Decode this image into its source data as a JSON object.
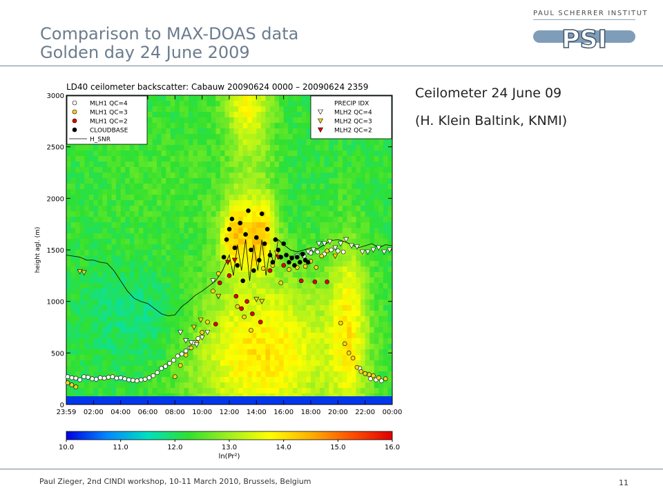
{
  "slide": {
    "title_line1": "Comparison to MAX-DOAS data",
    "title_line2": "Golden day 24 June 2009",
    "logo_text": "PAUL SCHERRER INSTITUT",
    "logo_mark": "PSI",
    "side_line1": "Ceilometer 24 June 09",
    "side_line2": "(H. Klein Baltink, KNMI)",
    "footer": "Paul Zieger, 2nd CINDI workshop, 10-11 March 2010, Brussels, Belgium",
    "page_number": "11"
  },
  "chart_data": {
    "type": "heatmap",
    "title": "LD40 ceilometer backscatter: Cabauw 20090624 0000 – 20090624 2359",
    "ylabel": "height agl. (m)",
    "xlabel": "",
    "xlim": [
      0,
      24
    ],
    "ylim": [
      0,
      3000
    ],
    "x_ticks": [
      "23:59",
      "02:00",
      "04:00",
      "06:00",
      "08:00",
      "10:00",
      "12:00",
      "14:00",
      "16:00",
      "18:00",
      "20:00",
      "22:00",
      "00:00"
    ],
    "y_ticks": [
      "0",
      "500",
      "1000",
      "1500",
      "2000",
      "2500",
      "3000"
    ],
    "colorbar": {
      "label": "ln(Pr²)",
      "min": 10.0,
      "max": 16.0,
      "ticks": [
        "10.0",
        "11.0",
        "12.0",
        "13.0",
        "14.0",
        "15.0",
        "16.0"
      ],
      "colors": [
        "#0000e0",
        "#0088ff",
        "#00e0c0",
        "#30e030",
        "#a0f020",
        "#ffff00",
        "#ffb000",
        "#ff5000",
        "#e00000"
      ]
    },
    "legend_left": {
      "entries": [
        {
          "label": "MLH1  QC=4",
          "marker": "circle",
          "color": "#ffffff"
        },
        {
          "label": "MLH1  QC=3",
          "marker": "circle",
          "color": "#ffd21f"
        },
        {
          "label": "MLH1  QC=2",
          "marker": "circle",
          "color": "#e00000"
        },
        {
          "label": "CLOUDBASE",
          "marker": "circle",
          "color": "#000000"
        },
        {
          "label": "H_SNR",
          "marker": "line",
          "color": "#000000"
        }
      ]
    },
    "legend_right": {
      "entries": [
        {
          "label": "PRECIP IDX",
          "marker": "none",
          "color": "#000000"
        },
        {
          "label": "MLH2  QC=4",
          "marker": "triangle",
          "color": "#ffffff"
        },
        {
          "label": "MLH2  QC=3",
          "marker": "triangle",
          "color": "#ffd21f"
        },
        {
          "label": "MLH2  QC=2",
          "marker": "triangle",
          "color": "#e00000"
        }
      ]
    },
    "surface_band": {
      "y_range": [
        0,
        80
      ],
      "value": 10.3
    },
    "field_blobs": [
      {
        "x": 12.5,
        "y": 1750,
        "sx": 0.9,
        "sy": 300,
        "value": 16.0
      },
      {
        "x": 14.2,
        "y": 1700,
        "sx": 0.8,
        "sy": 280,
        "value": 15.3
      },
      {
        "x": 13.3,
        "y": 2800,
        "sx": 1.2,
        "sy": 450,
        "value": 14.2
      },
      {
        "x": 14.5,
        "y": 500,
        "sx": 4.0,
        "sy": 550,
        "value": 14.0
      },
      {
        "x": 20.7,
        "y": 700,
        "sx": 1.0,
        "sy": 600,
        "value": 14.0
      },
      {
        "x": 5.0,
        "y": 900,
        "sx": 2.5,
        "sy": 350,
        "value": 11.8
      },
      {
        "x": 8.0,
        "y": 2200,
        "sx": 5.0,
        "sy": 500,
        "value": 12.4
      }
    ],
    "h_snr": {
      "x": [
        0,
        0.5,
        1,
        1.5,
        2,
        2.5,
        3,
        3.5,
        4,
        4.5,
        5,
        5.5,
        6,
        6.5,
        7,
        7.5,
        8,
        8.5,
        9,
        9.5,
        10,
        10.5,
        11,
        11.5,
        12,
        12.3,
        12.6,
        12.9,
        13.2,
        13.5,
        13.8,
        14.1,
        14.4,
        14.7,
        15,
        15.3,
        15.6,
        16,
        16.5,
        17,
        17.5,
        18,
        18.5,
        19,
        19.5,
        20,
        20.5,
        21,
        21.5,
        22,
        22.5,
        23,
        23.5,
        24
      ],
      "y": [
        1450,
        1440,
        1430,
        1400,
        1400,
        1380,
        1370,
        1300,
        1200,
        1100,
        1030,
        1000,
        980,
        930,
        880,
        860,
        870,
        950,
        1000,
        1060,
        1100,
        1150,
        1200,
        1300,
        1450,
        1250,
        1550,
        1300,
        1600,
        1200,
        1550,
        1300,
        1600,
        1250,
        1500,
        1350,
        1600,
        1550,
        1500,
        1480,
        1500,
        1520,
        1510,
        1550,
        1590,
        1600,
        1580,
        1550,
        1520,
        1540,
        1560,
        1520,
        1550,
        1540
      ]
    },
    "mlh1_qc4": {
      "x": [
        0.1,
        0.4,
        0.7,
        1.0,
        1.3,
        1.6,
        1.9,
        2.2,
        2.5,
        2.8,
        3.1,
        3.4,
        3.7,
        4.0,
        4.3,
        4.6,
        4.9,
        5.2,
        5.5,
        5.8,
        6.1,
        6.4,
        6.7,
        7.0,
        7.3,
        7.6,
        7.9,
        8.2,
        8.5,
        8.8,
        9.1,
        9.4,
        9.7,
        10.0,
        17.5,
        18.0,
        18.5,
        19.0,
        19.5,
        20.0,
        20.4,
        21.6,
        22.0,
        22.4,
        22.8,
        23.2
      ],
      "y": [
        270,
        260,
        255,
        240,
        270,
        265,
        250,
        245,
        260,
        255,
        265,
        270,
        255,
        260,
        250,
        240,
        235,
        230,
        240,
        245,
        260,
        280,
        310,
        350,
        370,
        400,
        430,
        470,
        490,
        520,
        550,
        600,
        640,
        700,
        1440,
        1470,
        1480,
        1460,
        1500,
        1490,
        1480,
        350,
        300,
        250,
        240,
        230
      ]
    },
    "mlh1_qc3": {
      "x": [
        0.1,
        0.4,
        0.7,
        8.0,
        8.4,
        8.8,
        9.2,
        9.6,
        10.0,
        10.4,
        10.8,
        11.2,
        12.6,
        13.1,
        13.6,
        14.5,
        15.2,
        15.8,
        16.4,
        17.0,
        17.6,
        18.0,
        18.4,
        18.8,
        19.2,
        20.2,
        20.5,
        20.8,
        21.1,
        21.4,
        21.7,
        22.0,
        22.3,
        22.6,
        23.0,
        23.5
      ],
      "y": [
        210,
        190,
        170,
        270,
        380,
        480,
        550,
        600,
        700,
        800,
        1100,
        1270,
        950,
        850,
        720,
        1320,
        1350,
        1180,
        1310,
        1330,
        1340,
        1390,
        1330,
        1440,
        1490,
        790,
        590,
        500,
        450,
        360,
        320,
        300,
        290,
        280,
        260,
        250
      ]
    },
    "mlh1_qc2": {
      "x": [
        11.0,
        11.3,
        12.0,
        12.5,
        12.9,
        13.3,
        13.7,
        14.3,
        15.0,
        16.0,
        17.3,
        18.3,
        19.2
      ],
      "y": [
        780,
        1180,
        1250,
        1050,
        930,
        1000,
        880,
        800,
        1300,
        1350,
        1200,
        1190,
        1190
      ]
    },
    "cloudbase": {
      "x": [
        11.6,
        11.8,
        12.0,
        12.2,
        12.4,
        12.6,
        12.8,
        13.0,
        13.2,
        13.4,
        13.6,
        13.8,
        14.0,
        14.2,
        14.4,
        14.6,
        14.8,
        15.0,
        15.2,
        15.4,
        15.6,
        15.8,
        16.0,
        16.2,
        16.4,
        16.6,
        16.8,
        17.0,
        17.2,
        17.4,
        17.6,
        17.8
      ],
      "y": [
        1430,
        1600,
        1700,
        1800,
        1520,
        1350,
        1760,
        1200,
        1650,
        1880,
        1500,
        1300,
        1620,
        1400,
        1850,
        1560,
        1700,
        1450,
        1380,
        1600,
        1500,
        1430,
        1560,
        1450,
        1380,
        1420,
        1350,
        1430,
        1380,
        1460,
        1400,
        1380
      ]
    },
    "mlh2_qc4": {
      "x": [
        8.4,
        8.8,
        9.2,
        9.6,
        10.0,
        10.4,
        10.8,
        16.6,
        17.0,
        17.4,
        17.8,
        18.2,
        18.6,
        19.0,
        19.4,
        19.8,
        20.2,
        20.6,
        21.0,
        21.4,
        21.8,
        22.2,
        22.6,
        23.0,
        23.4,
        23.8
      ],
      "y": [
        700,
        620,
        600,
        580,
        650,
        700,
        1200,
        1420,
        1440,
        1450,
        1480,
        1500,
        1560,
        1560,
        1580,
        1520,
        1560,
        1600,
        1540,
        1530,
        1480,
        1480,
        1500,
        1520,
        1480,
        1500
      ]
    },
    "mlh2_qc3": {
      "x": [
        1.0,
        1.3,
        9.4,
        9.9,
        11.2,
        14.0,
        14.4,
        15.5,
        16.6,
        19.8
      ],
      "y": [
        1290,
        1280,
        750,
        820,
        1050,
        1020,
        1000,
        1470,
        1420,
        1440
      ]
    },
    "mlh2_qc2": {
      "x": [
        11.9,
        12.4,
        15.6
      ],
      "y": [
        1380,
        1400,
        1430
      ]
    }
  }
}
